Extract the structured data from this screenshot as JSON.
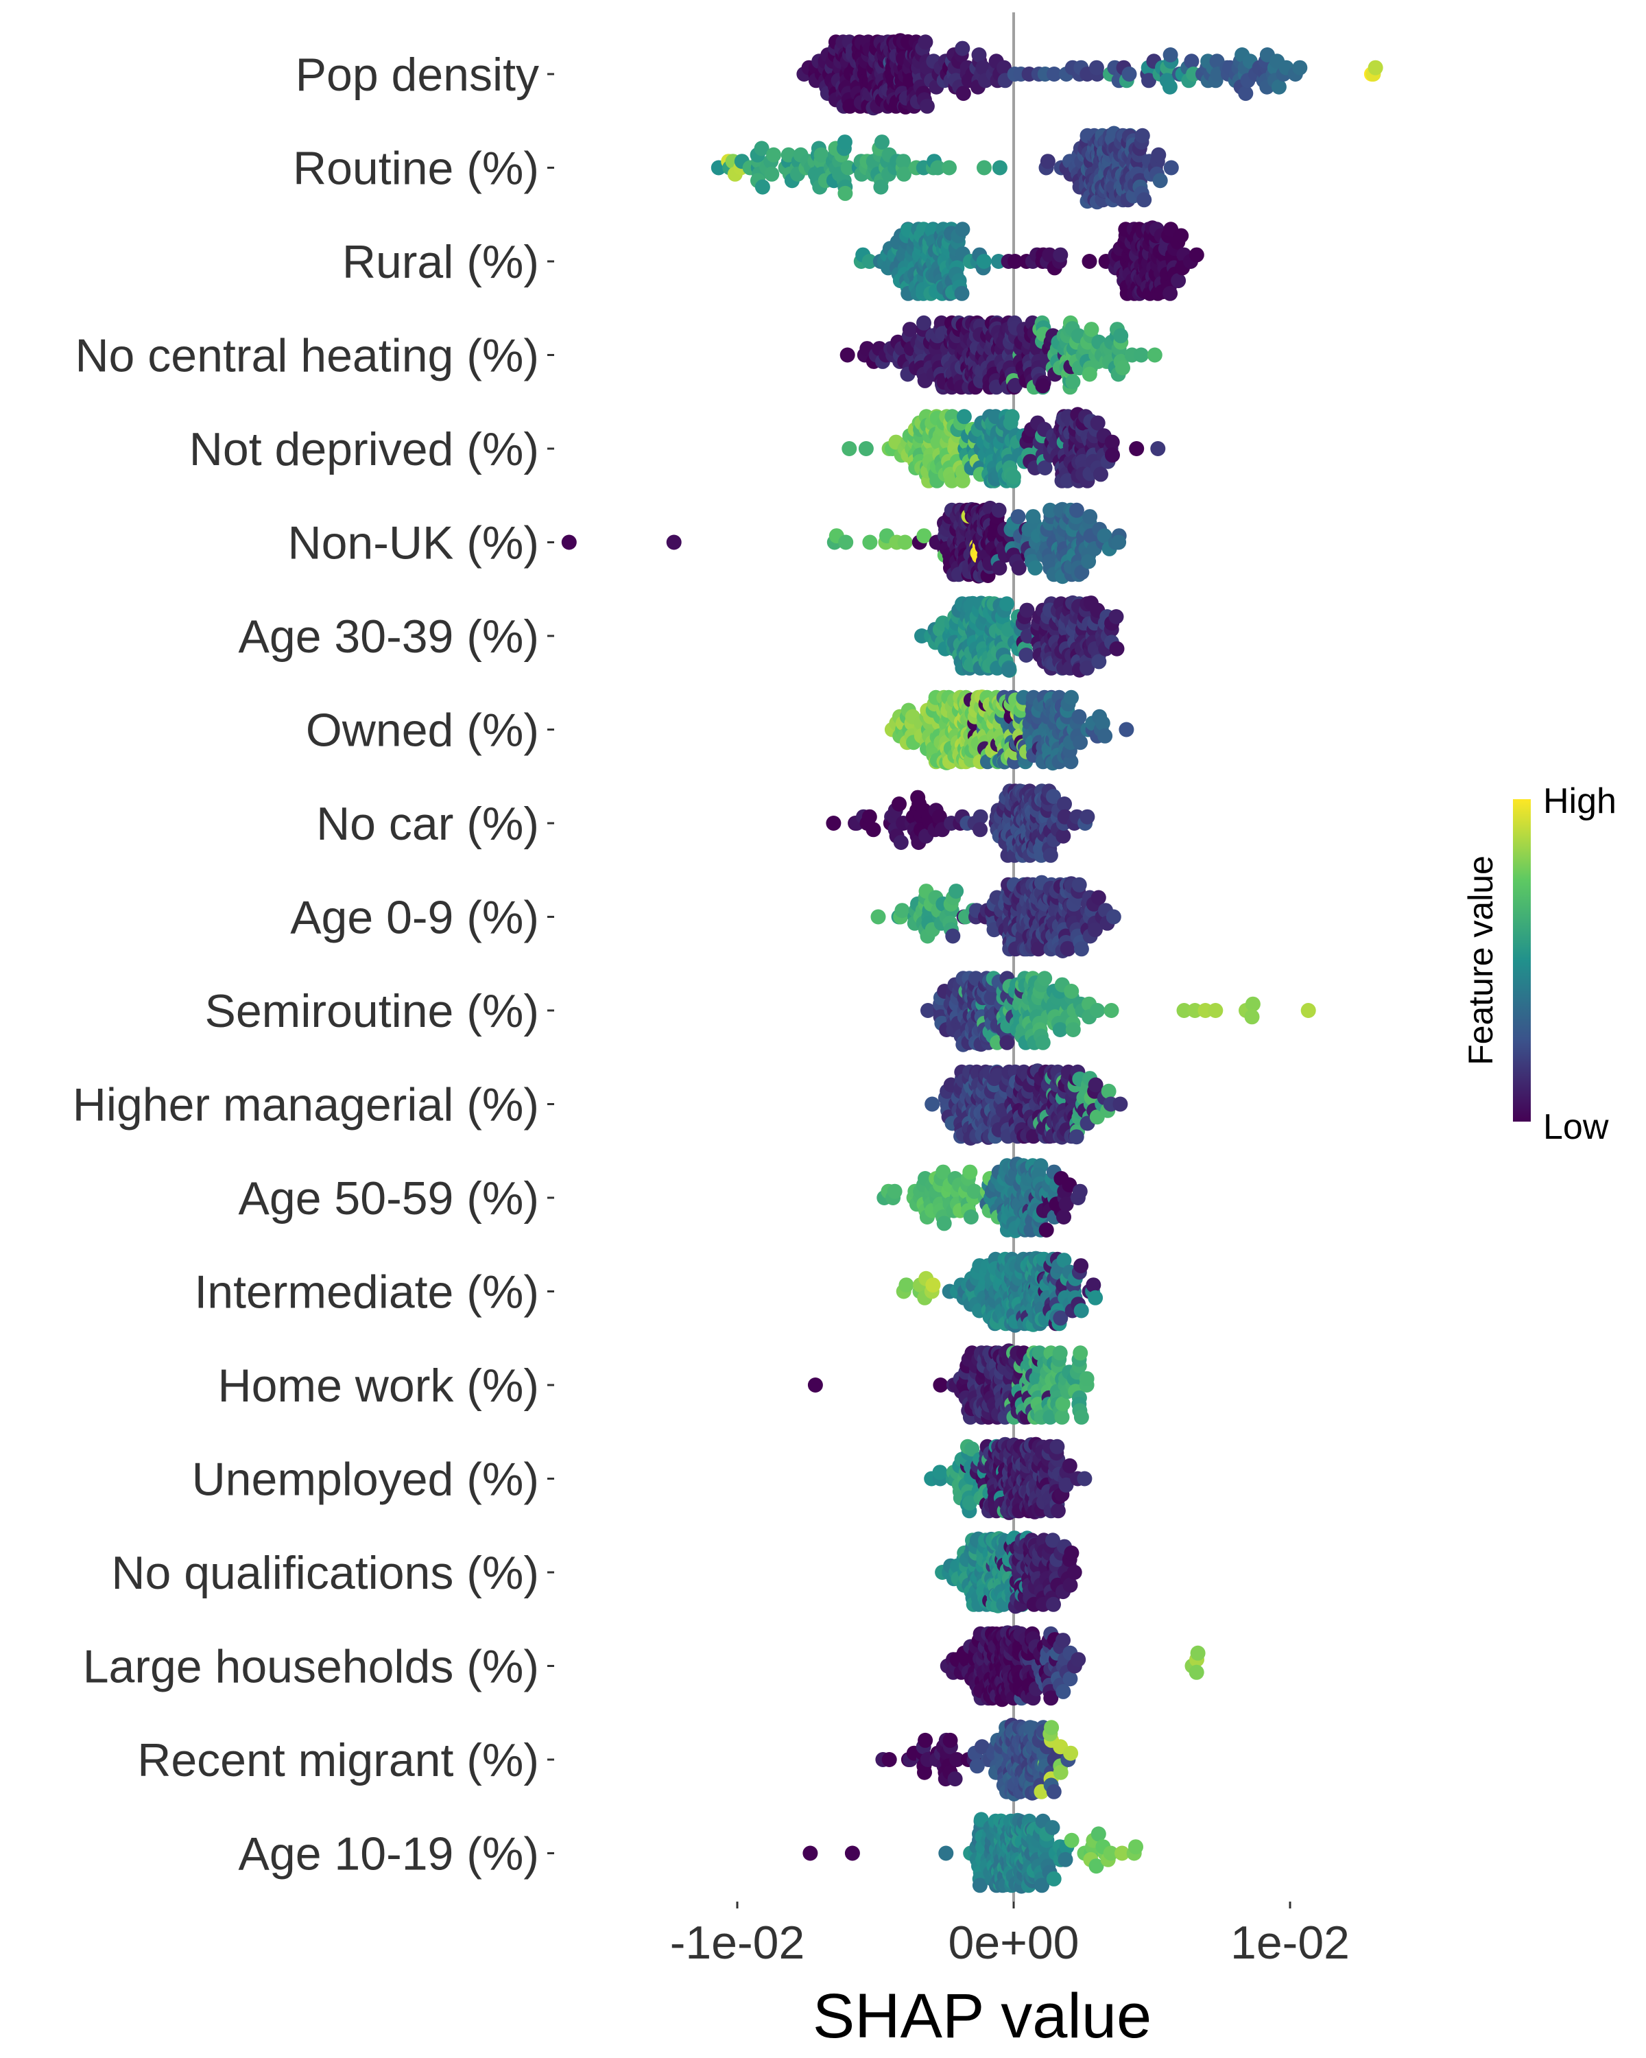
{
  "chart_data": {
    "type": "scatter",
    "subtype": "beeswarm",
    "title": "",
    "xlabel": "SHAP value",
    "ylabel": "",
    "xlim": [
      -0.0155,
      0.0145
    ],
    "x_ticks": [
      {
        "value": -0.01,
        "label": "-1e-02"
      },
      {
        "value": 0.0,
        "label": "0e+00"
      },
      {
        "value": 0.01,
        "label": "1e-02"
      }
    ],
    "reference_line_x": 0,
    "grid": false,
    "legend": {
      "title": "Feature value",
      "high_label": "High",
      "low_label": "Low",
      "placement": "right",
      "colorscale": [
        "#440154",
        "#3b528b",
        "#21918c",
        "#5ec962",
        "#fde725"
      ]
    },
    "features": [
      {
        "name": "Pop density (%)",
        "label": "Pop density",
        "summary": "low values (dark) cluster at negative SHAP around -0.005; mid values around 0.005 to 0.011; a few high values near 0.013",
        "clusters": [
          {
            "center": -0.0048,
            "sd": 0.001,
            "n": 190,
            "color": 0.03
          },
          {
            "center": -0.0065,
            "sd": 0.0006,
            "n": 20,
            "color": 0.02
          },
          {
            "center": -0.002,
            "sd": 0.001,
            "n": 50,
            "color": 0.1
          },
          {
            "center": 0.002,
            "sd": 0.0025,
            "n": 25,
            "color": 0.22
          },
          {
            "center": 0.0085,
            "sd": 0.001,
            "n": 45,
            "color": 0.3
          },
          {
            "center": 0.0055,
            "sd": 0.0007,
            "n": 12,
            "color": 0.55
          },
          {
            "center": 0.013,
            "sd": 0.0001,
            "n": 3,
            "color": 0.97
          }
        ]
      },
      {
        "name": "Routine (%)",
        "label": "Routine (%)",
        "summary": "low values positive (0.002 to 0.005); high values negative down to -0.011",
        "clusters": [
          {
            "center": 0.0035,
            "sd": 0.0008,
            "n": 180,
            "color": 0.22
          },
          {
            "center": -0.0065,
            "sd": 0.002,
            "n": 85,
            "color": 0.58
          },
          {
            "center": -0.0105,
            "sd": 0.0004,
            "n": 4,
            "color": 0.88
          }
        ]
      },
      {
        "name": "Rural (%)",
        "label": "Rural (%)",
        "summary": "low values positive (0.004 to 0.006); mid/high values around -0.003",
        "clusters": [
          {
            "center": 0.0048,
            "sd": 0.0007,
            "n": 130,
            "color": 0.01
          },
          {
            "center": 0.001,
            "sd": 0.0006,
            "n": 12,
            "color": 0.02
          },
          {
            "center": -0.003,
            "sd": 0.0008,
            "n": 130,
            "color": 0.45
          },
          {
            "center": -0.0055,
            "sd": 0.0003,
            "n": 3,
            "color": 0.5
          }
        ]
      },
      {
        "name": "No central heating (%)",
        "label": "No central heating (%)",
        "summary": "low values negative to -0.006; high values positive to 0.005",
        "clusters": [
          {
            "center": -0.0012,
            "sd": 0.0016,
            "n": 220,
            "color": 0.08
          },
          {
            "center": -0.0055,
            "sd": 0.0006,
            "n": 6,
            "color": 0.02
          },
          {
            "center": 0.0027,
            "sd": 0.0012,
            "n": 70,
            "color": 0.62
          }
        ]
      },
      {
        "name": "Not deprived (%)",
        "label": "Not deprived (%)",
        "summary": "high values negative around -0.003; low values positive around 0.002",
        "clusters": [
          {
            "center": -0.0028,
            "sd": 0.0007,
            "n": 85,
            "color": 0.76
          },
          {
            "center": -0.0005,
            "sd": 0.0006,
            "n": 85,
            "color": 0.5
          },
          {
            "center": 0.0022,
            "sd": 0.0008,
            "n": 95,
            "color": 0.1
          },
          {
            "center": -0.0058,
            "sd": 0.0008,
            "n": 2,
            "color": 0.7
          },
          {
            "center": 0.0045,
            "sd": 0.0001,
            "n": 1,
            "color": 0.02
          }
        ]
      },
      {
        "name": "Non-UK (%)",
        "label": "Non-UK (%)",
        "summary": "low values around -0.001 with outliers to -0.016; mid/high values around 0.002",
        "clusters": [
          {
            "center": -0.0013,
            "sd": 0.0007,
            "n": 150,
            "color": 0.06
          },
          {
            "center": 0.0018,
            "sd": 0.0008,
            "n": 95,
            "color": 0.35
          },
          {
            "center": -0.0045,
            "sd": 0.0008,
            "n": 10,
            "color": 0.72
          },
          {
            "center": -0.0162,
            "sd": 0.0001,
            "n": 1,
            "color": 0.02
          },
          {
            "center": -0.0122,
            "sd": 0.0001,
            "n": 1,
            "color": 0.02
          },
          {
            "center": -0.0012,
            "sd": 0.0003,
            "n": 5,
            "color": 0.98
          }
        ]
      },
      {
        "name": "Age 30-39 (%)",
        "label": "Age 30-39 (%)",
        "summary": "high/mid values slightly negative; low values positive to 0.004",
        "clusters": [
          {
            "center": -0.0012,
            "sd": 0.0008,
            "n": 130,
            "color": 0.5
          },
          {
            "center": 0.0022,
            "sd": 0.0009,
            "n": 120,
            "color": 0.12
          }
        ]
      },
      {
        "name": "Owned (%)",
        "label": "Owned (%)",
        "summary": "high values negative around -0.002; mid values positive to 0.003",
        "clusters": [
          {
            "center": -0.0018,
            "sd": 0.0011,
            "n": 180,
            "color": 0.8
          },
          {
            "center": 0.0012,
            "sd": 0.001,
            "n": 110,
            "color": 0.33
          },
          {
            "center": -0.0004,
            "sd": 0.0005,
            "n": 12,
            "color": 0.03
          }
        ]
      },
      {
        "name": "No car (%)",
        "label": "No car (%)",
        "summary": "low values negative to -0.006; mid values positive around 0.001",
        "clusters": [
          {
            "center": 0.0005,
            "sd": 0.0007,
            "n": 150,
            "color": 0.18
          },
          {
            "center": -0.0038,
            "sd": 0.0013,
            "n": 40,
            "color": 0.02
          }
        ]
      },
      {
        "name": "Age 0-9 (%)",
        "label": "Age 0-9 (%)",
        "summary": "high values negative to -0.005; low values positive around 0.001",
        "clusters": [
          {
            "center": 0.001,
            "sd": 0.0011,
            "n": 200,
            "color": 0.16
          },
          {
            "center": -0.0028,
            "sd": 0.0009,
            "n": 35,
            "color": 0.62
          }
        ]
      },
      {
        "name": "Semiroutine (%)",
        "label": "Semiroutine (%)",
        "summary": "low values slightly negative; high values positive to 0.011",
        "clusters": [
          {
            "center": -0.0014,
            "sd": 0.0007,
            "n": 110,
            "color": 0.2
          },
          {
            "center": 0.0006,
            "sd": 0.001,
            "n": 90,
            "color": 0.6
          },
          {
            "center": 0.0072,
            "sd": 0.001,
            "n": 7,
            "color": 0.82
          },
          {
            "center": 0.0105,
            "sd": 0.0001,
            "n": 1,
            "color": 0.85
          }
        ]
      },
      {
        "name": "Higher managerial (%)",
        "label": "Higher managerial (%)",
        "summary": "mixed values tightly around zero, spread -0.002 to 0.003",
        "clusters": [
          {
            "center": -0.0012,
            "sd": 0.0007,
            "n": 120,
            "color": 0.2
          },
          {
            "center": 0.0012,
            "sd": 0.0009,
            "n": 130,
            "color": 0.12
          },
          {
            "center": 0.002,
            "sd": 0.0007,
            "n": 25,
            "color": 0.62
          }
        ]
      },
      {
        "name": "Age 50-59 (%)",
        "label": "Age 50-59 (%)",
        "summary": "high values negative to -0.003; low values slightly positive",
        "clusters": [
          {
            "center": 0.0003,
            "sd": 0.0006,
            "n": 120,
            "color": 0.4
          },
          {
            "center": -0.0024,
            "sd": 0.001,
            "n": 55,
            "color": 0.7
          },
          {
            "center": 0.0015,
            "sd": 0.0006,
            "n": 18,
            "color": 0.06
          }
        ]
      },
      {
        "name": "Intermediate (%)",
        "label": "Intermediate (%)",
        "summary": "mostly near zero; high values negative to -0.004",
        "clusters": [
          {
            "center": 0.0002,
            "sd": 0.0009,
            "n": 200,
            "color": 0.45
          },
          {
            "center": -0.0035,
            "sd": 0.0004,
            "n": 8,
            "color": 0.85
          },
          {
            "center": 0.0018,
            "sd": 0.0006,
            "n": 25,
            "color": 0.12
          }
        ]
      },
      {
        "name": "Home work (%)",
        "label": "Home work (%)",
        "summary": "low values slightly negative with outliers to -0.007; high values slightly positive",
        "clusters": [
          {
            "center": -0.0007,
            "sd": 0.0006,
            "n": 130,
            "color": 0.1
          },
          {
            "center": 0.0013,
            "sd": 0.0007,
            "n": 80,
            "color": 0.62
          },
          {
            "center": -0.0072,
            "sd": 0.0001,
            "n": 1,
            "color": 0.02
          },
          {
            "center": -0.0027,
            "sd": 0.0001,
            "n": 1,
            "color": 0.02
          }
        ]
      },
      {
        "name": "Unemployed (%)",
        "label": "Unemployed (%)",
        "summary": "mixed values around zero, spread -0.002 to 0.002",
        "clusters": [
          {
            "center": 0.0004,
            "sd": 0.0008,
            "n": 200,
            "color": 0.1
          },
          {
            "center": -0.0015,
            "sd": 0.0006,
            "n": 40,
            "color": 0.55
          }
        ]
      },
      {
        "name": "No qualifications (%)",
        "label": "No qualifications (%)",
        "summary": "narrow spread around zero",
        "clusters": [
          {
            "center": -0.0008,
            "sd": 0.0006,
            "n": 130,
            "color": 0.5
          },
          {
            "center": 0.0008,
            "sd": 0.0006,
            "n": 90,
            "color": 0.1
          }
        ]
      },
      {
        "name": "Large households (%)",
        "label": "Large households (%)",
        "summary": "low values slightly negative; a few high values positive around 0.007",
        "clusters": [
          {
            "center": -0.0003,
            "sd": 0.0008,
            "n": 200,
            "color": 0.02
          },
          {
            "center": 0.0012,
            "sd": 0.0006,
            "n": 30,
            "color": 0.2
          },
          {
            "center": 0.0065,
            "sd": 0.0003,
            "n": 4,
            "color": 0.8
          }
        ]
      },
      {
        "name": "Recent migrant (%)",
        "label": "Recent migrant (%)",
        "summary": "low values negative to -0.004; mid values near zero",
        "clusters": [
          {
            "center": 0.0003,
            "sd": 0.0006,
            "n": 150,
            "color": 0.25
          },
          {
            "center": -0.0028,
            "sd": 0.0009,
            "n": 30,
            "color": 0.02
          },
          {
            "center": 0.0015,
            "sd": 0.0003,
            "n": 10,
            "color": 0.85
          }
        ]
      },
      {
        "name": "Age 10-19 (%)",
        "label": "Age 10-19 (%)",
        "summary": "mid values near zero; high values positive to 0.004; two low outliers near -0.007",
        "clusters": [
          {
            "center": 0.0,
            "sd": 0.0007,
            "n": 200,
            "color": 0.45
          },
          {
            "center": 0.003,
            "sd": 0.0007,
            "n": 15,
            "color": 0.78
          },
          {
            "center": -0.0072,
            "sd": 0.0001,
            "n": 1,
            "color": 0.02
          },
          {
            "center": -0.0056,
            "sd": 0.0001,
            "n": 1,
            "color": 0.02
          }
        ]
      }
    ]
  }
}
